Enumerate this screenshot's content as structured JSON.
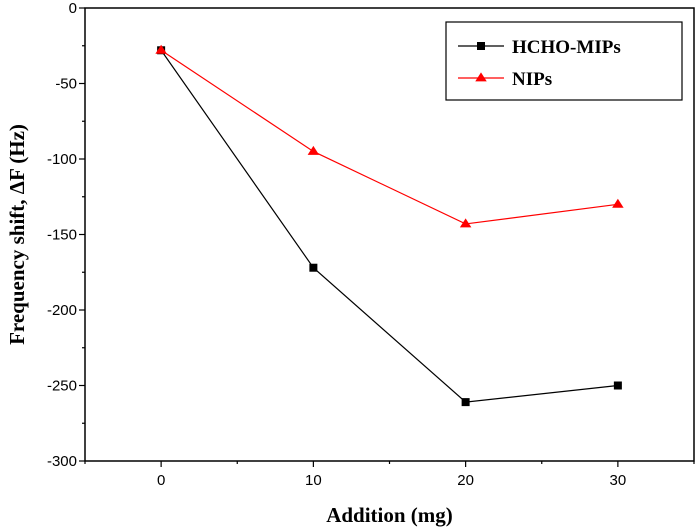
{
  "chart_data": {
    "type": "line",
    "title": "",
    "xlabel": "Addition (mg)",
    "ylabel": "Frequency shift, ΔF (Hz)",
    "x": [
      0,
      10,
      20,
      30
    ],
    "xlim": [
      -5,
      35
    ],
    "ylim": [
      -300,
      0
    ],
    "xticks": [
      0,
      10,
      20,
      30
    ],
    "yticks": [
      0,
      -50,
      -100,
      -150,
      -200,
      -250,
      -300
    ],
    "grid": false,
    "legend_position": "top-right",
    "series": [
      {
        "name": "HCHO-MIPs",
        "values": [
          -28,
          -172,
          -261,
          -250
        ],
        "color": "#000000",
        "marker": "square"
      },
      {
        "name": "NIPs",
        "values": [
          -28,
          -95,
          -143,
          -130
        ],
        "color": "#ff0000",
        "marker": "triangle"
      }
    ]
  }
}
